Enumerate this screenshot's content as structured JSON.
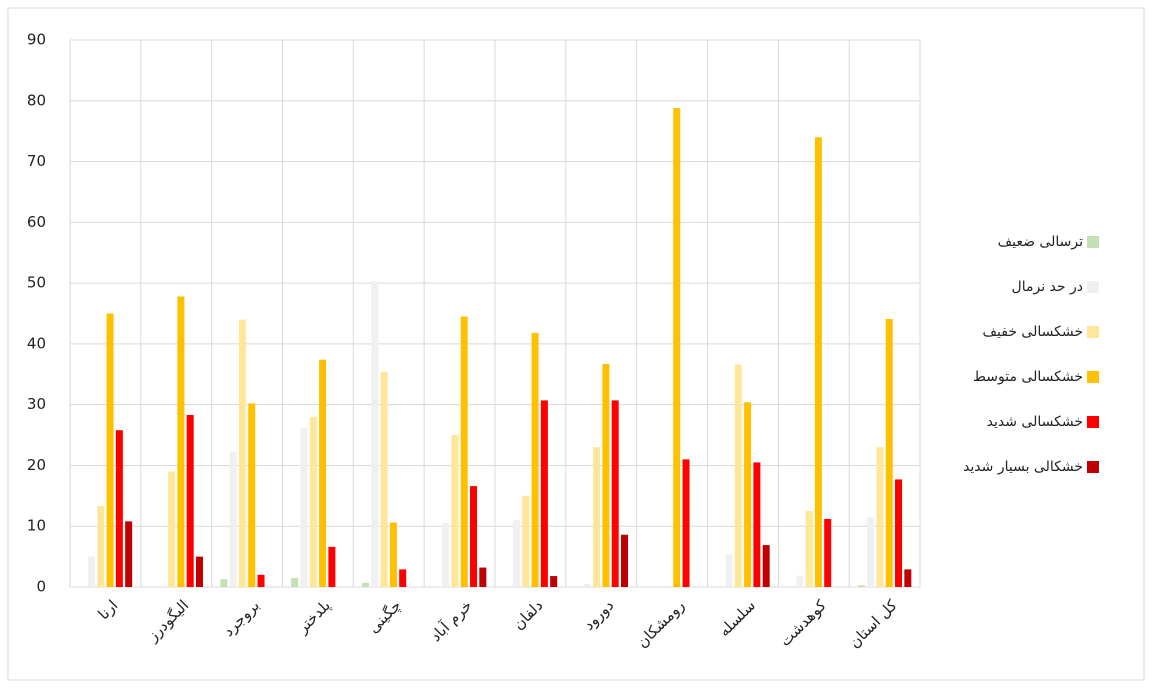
{
  "chart_data": {
    "type": "bar",
    "categories": [
      "ارنا",
      "الیگودرز",
      "بروجرد",
      "پلدختر",
      "چگینی",
      "خرم آباد",
      "دلفان",
      "دورود",
      "رومشکان",
      "سلسله",
      "کوهدشت",
      "کل استان"
    ],
    "series": [
      {
        "name": "ترسالی ضعیف",
        "color": "#c5e0b4",
        "values": [
          0,
          0,
          1.3,
          1.5,
          0.7,
          0,
          0,
          0,
          0,
          0,
          0,
          0.3
        ]
      },
      {
        "name": "در حد نرمال",
        "color": "#f0f0f0",
        "values": [
          5,
          0,
          22.3,
          26.2,
          50.3,
          10.5,
          11,
          0.5,
          0,
          5.3,
          1.9,
          11.5
        ]
      },
      {
        "name": "خشکسالی خفیف",
        "color": "#ffe699",
        "values": [
          13.3,
          19,
          44,
          28,
          35.4,
          25,
          15,
          23,
          0,
          36.6,
          12.5,
          23
        ]
      },
      {
        "name": "خشکسالی متوسط",
        "color": "#ffc000",
        "values": [
          45,
          47.8,
          30.2,
          37.4,
          10.6,
          44.5,
          41.8,
          36.7,
          78.8,
          30.4,
          74,
          44.1
        ]
      },
      {
        "name": "خشکسالی شدید",
        "color": "#ff0000",
        "values": [
          25.8,
          28.3,
          2,
          6.6,
          2.9,
          16.6,
          30.7,
          30.7,
          21,
          20.5,
          11.2,
          17.7
        ]
      },
      {
        "name": "خشکالی بسیار شدید",
        "color": "#c00000",
        "values": [
          10.8,
          5,
          0,
          0,
          0,
          3.2,
          1.8,
          8.6,
          0,
          6.9,
          0,
          2.9
        ]
      }
    ],
    "ylim": [
      0,
      90
    ],
    "yticks": [
      0,
      10,
      20,
      30,
      40,
      50,
      60,
      70,
      80,
      90
    ],
    "grid": true,
    "legend": "right"
  }
}
